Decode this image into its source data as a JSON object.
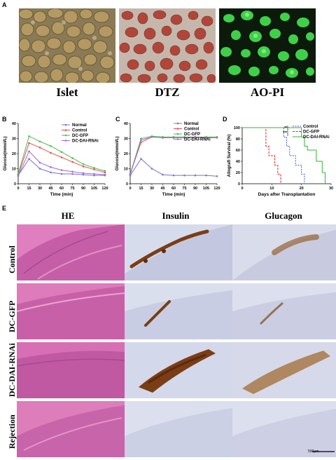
{
  "panel_letters": [
    "A",
    "B",
    "C",
    "D",
    "E"
  ],
  "panel_a": {
    "captions": [
      "Islet",
      "DTZ",
      "AO-PI"
    ]
  },
  "colors": {
    "normal": "#7b6fd6",
    "control": "#e8504f",
    "dc_gfp": "#4cbb4c",
    "dc_dai_rnai": "#a16bd6",
    "he": "#d77bb6",
    "ihc_bg": "#d6dbea",
    "ihc_stain": "#7b3d16"
  },
  "chart_data": [
    {
      "panel": "B",
      "type": "line",
      "x": [
        0,
        15,
        30,
        45,
        60,
        75,
        90,
        105,
        120
      ],
      "xlabel": "Time (min)",
      "ylabel": "Glucose(mmol/L)",
      "xlim": [
        0,
        120
      ],
      "ylim": [
        0,
        40
      ],
      "xticks": [
        0,
        15,
        30,
        45,
        60,
        75,
        90,
        105,
        120
      ],
      "yticks": [
        0,
        10,
        20,
        30,
        40
      ],
      "legend_position": "top-right",
      "series": [
        {
          "name": "Normal",
          "color": "#7b6fd6",
          "values": [
            5.5,
            16.5,
            10,
            7.5,
            6.5,
            6.5,
            6,
            5.5,
            5.5
          ]
        },
        {
          "name": "Control",
          "color": "#e8504f",
          "values": [
            6,
            27,
            24,
            20.5,
            17.5,
            14.5,
            11.5,
            9.5,
            7.5
          ]
        },
        {
          "name": "DC-GFP",
          "color": "#4cbb4c",
          "values": [
            6.5,
            31.5,
            28,
            25,
            21,
            17,
            13,
            10.5,
            8.5
          ]
        },
        {
          "name": "DC-DAI-RNAi",
          "color": "#a16bd6",
          "values": [
            5,
            21.5,
            14,
            11,
            9,
            8,
            7,
            6.5,
            6
          ]
        }
      ]
    },
    {
      "panel": "C",
      "type": "line",
      "x": [
        0,
        15,
        30,
        45,
        60,
        75,
        90,
        105,
        120
      ],
      "xlabel": "Time (min)",
      "ylabel": "Glucose(mmol/L)",
      "xlim": [
        0,
        120
      ],
      "ylim": [
        0,
        40
      ],
      "xticks": [
        0,
        15,
        30,
        45,
        60,
        75,
        90,
        105,
        120
      ],
      "yticks": [
        0,
        10,
        20,
        30,
        40
      ],
      "legend_position": "top-right",
      "series": [
        {
          "name": "Normal",
          "color": "#7b6fd6",
          "values": [
            5.5,
            16.5,
            10,
            6,
            5.5,
            5.5,
            5.5,
            5.5,
            5
          ]
        },
        {
          "name": "Control",
          "color": "#e8504f",
          "values": [
            6.5,
            27.5,
            31,
            30.5,
            30.5,
            30.5,
            30.5,
            30.5,
            30.5
          ]
        },
        {
          "name": "DC-GFP",
          "color": "#4cbb4c",
          "values": [
            6.5,
            30,
            31.5,
            31,
            31,
            31,
            31,
            31,
            31
          ]
        },
        {
          "name": "DC-DAI-RNAi",
          "color": "#a16bd6",
          "values": [
            6,
            29,
            31,
            30.5,
            30.5,
            30.5,
            31,
            30.5,
            30.5
          ]
        }
      ]
    },
    {
      "panel": "D",
      "type": "line",
      "step": true,
      "xlabel": "Days after Transplantation",
      "ylabel": "Allograft Survival (%)",
      "xlim": [
        0,
        30
      ],
      "ylim": [
        0,
        100
      ],
      "xticks": [
        0,
        10,
        20,
        30
      ],
      "yticks": [
        0,
        20,
        40,
        60,
        80,
        100
      ],
      "legend_position": "top-right",
      "significance": [
        "**",
        "***"
      ],
      "series": [
        {
          "name": "Control",
          "color": "#3b55d9",
          "dash": "2,1.5",
          "x": [
            0,
            14,
            15,
            16,
            18,
            20,
            21
          ],
          "values": [
            100,
            83,
            67,
            50,
            33,
            17,
            0
          ]
        },
        {
          "name": "DC-GFP",
          "color": "#e02020",
          "dash": "3,1.5",
          "x": [
            0,
            8,
            9,
            11,
            12,
            13
          ],
          "values": [
            100,
            67,
            50,
            33,
            17,
            0
          ]
        },
        {
          "name": "DC-DAI-RNAi",
          "color": "#33b533",
          "dash": "",
          "x": [
            0,
            20,
            21,
            22,
            25,
            27,
            28
          ],
          "values": [
            100,
            83,
            67,
            60,
            40,
            20,
            0
          ]
        }
      ]
    }
  ],
  "panel_e": {
    "column_headers": [
      "HE",
      "Insulin",
      "Glucagon"
    ],
    "row_labels": [
      "Control",
      "DC-GFP",
      "DC-DAI-RNAi",
      "Rejection"
    ],
    "scale_bar": "500μm"
  }
}
